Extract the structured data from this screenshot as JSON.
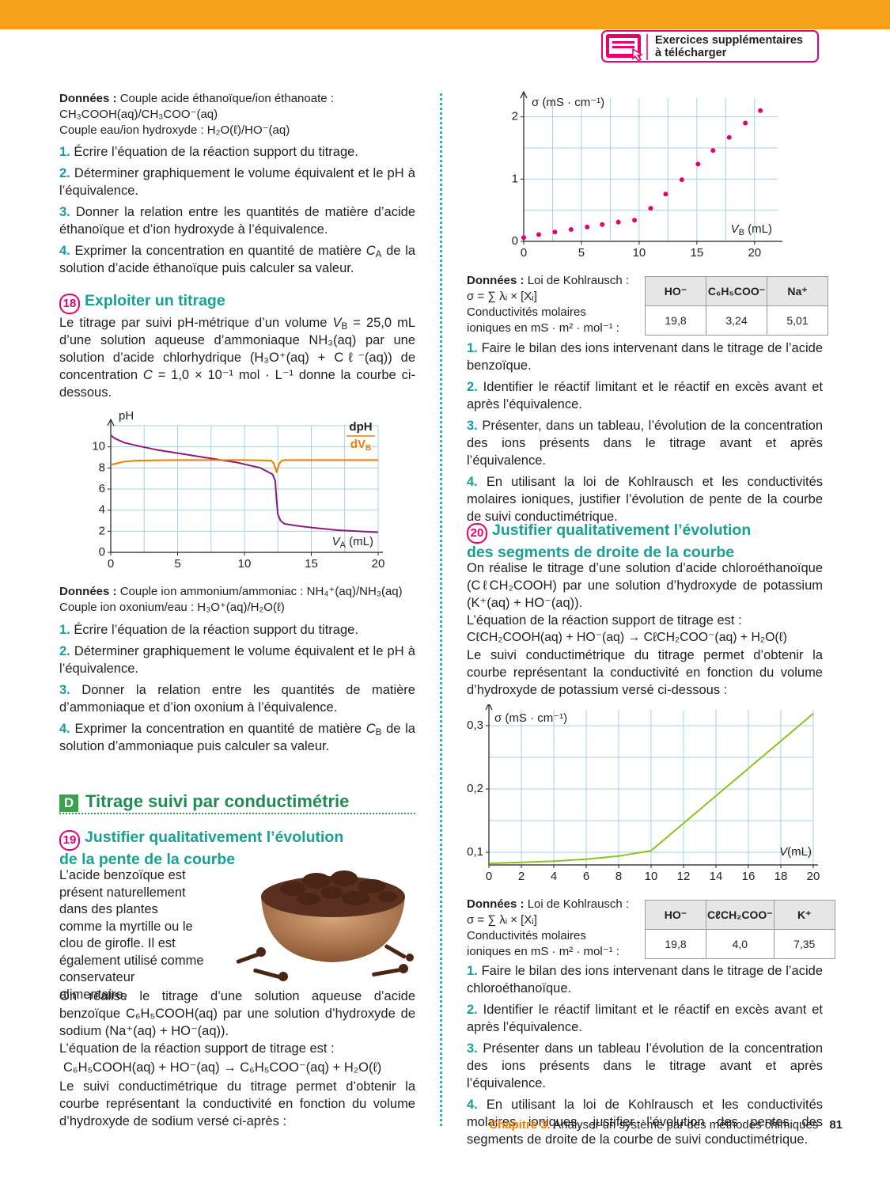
{
  "header": {
    "badge": [
      "Exercices supplémentaires",
      "à télécharger"
    ]
  },
  "left": {
    "donnees1": {
      "label": "Données :",
      "lines": [
        "Couple acide éthanoïque/ion éthanoate :",
        "CH₃COOH(aq)/CH₃COO⁻(aq)",
        "Couple eau/ion hydroxyde : H₂O(ℓ)/HO⁻(aq)"
      ]
    },
    "q1": [
      {
        "n": "1.",
        "t": "Écrire l’équation de la réaction support du titrage."
      },
      {
        "n": "2.",
        "t": "Déterminer graphiquement le volume équivalent et le pH à l’équivalence."
      },
      {
        "n": "3.",
        "t": "Donner la relation entre les quantités de matière d’acide éthanoïque et d’ion hydroxyde à l’équivalence."
      },
      {
        "n": "4.",
        "t": [
          "Exprimer la concentration en quantité de matière ",
          "C",
          "A",
          " de la solution d’acide éthanoïque puis calculer sa valeur."
        ]
      }
    ],
    "ex18": {
      "number": "18",
      "title": "Exploiter un titrage",
      "intro": [
        "Le titrage par suivi pH-métrique d’un volume ",
        "V",
        "B",
        " = 25,0 mL d’une solution aqueuse d’ammoniaque NH₃(aq) par une solution d’acide chlorhydrique (H₃O⁺(aq) + Cℓ⁻(aq)) de concentration ",
        "C",
        " = 1,0 × 10⁻¹ mol · L⁻¹ donne la courbe ci-dessous."
      ],
      "donnees": {
        "label": "Données :",
        "lines": [
          "Couple ion ammonium/ammoniac : NH₄⁺(aq)/NH₃(aq)",
          "Couple ion oxonium/eau : H₃O⁺(aq)/H₂O(ℓ)"
        ]
      },
      "q": [
        {
          "n": "1.",
          "t": "Écrire l’équation de la réaction support du titrage."
        },
        {
          "n": "2.",
          "t": "Déterminer graphiquement le volume équivalent et le pH à l’équivalence."
        },
        {
          "n": "3.",
          "t": "Donner la relation entre les quantités de matière d’ammoniaque et d’ion oxonium à l’équivalence."
        },
        {
          "n": "4.",
          "t": [
            "Exprimer la concentration en quantité de matière ",
            "C",
            "B",
            " de la solution d’ammoniaque puis calculer sa valeur."
          ]
        }
      ]
    },
    "section": {
      "letter": "D",
      "title": "Titrage suivi par conductimétrie"
    },
    "ex19": {
      "number": "19",
      "title": [
        "Justifier qualitativement l’évolution",
        "de la pente de la courbe"
      ],
      "intro": "L’acide benzoïque est présent naturellement dans des plantes comme la myrtille ou le clou de girofle. Il est également utilisé comme conservateur alimentaire.",
      "para": "On réalise le titrage d’une solution aqueuse d’acide benzoïque C₆H₅COOH(aq) par une solution d’hydroxyde de sodium (Na⁺(aq) + HO⁻(aq)).",
      "eq_intro": "L’équation de la réaction support de titrage est :",
      "equation": "C₆H₅COOH(aq) + HO⁻(aq) → C₆H₅COO⁻(aq) + H₂O(ℓ)",
      "para2": "Le suivi conductimétrique du titrage permet d’obtenir la courbe représentant la conductivité en fonction du volume d’hydroxyde de sodium versé ci-après :"
    }
  },
  "right": {
    "ex19": {
      "donnees": {
        "label": "Données :",
        "law": "Loi de Kohlrausch :",
        "formula": "σ = ∑ λᵢ × [Xᵢ]",
        "cond": [
          "Conductivités molaires",
          "ioniques en mS · m² · mol⁻¹ :"
        ],
        "table": {
          "header": [
            "HO⁻",
            "C₆H₅COO⁻",
            "Na⁺"
          ],
          "row": [
            "19,8",
            "3,24",
            "5,01"
          ]
        }
      },
      "q": [
        {
          "n": "1.",
          "t": "Faire le bilan des ions intervenant dans le titrage de l’acide benzoïque."
        },
        {
          "n": "2.",
          "t": "Identifier le réactif limitant et le réactif en excès avant et après l’équivalence."
        },
        {
          "n": "3.",
          "t": "Présenter, dans un tableau, l’évolution de la concentration des ions présents dans le titrage avant et après l’équivalence."
        },
        {
          "n": "4.",
          "t": "En utilisant la loi de Kohlrausch et les conductivités molaires ioniques, justifier l’évolution de pente de la courbe de suivi conductimétrique."
        }
      ]
    },
    "ex20": {
      "number": "20",
      "title": [
        "Justifier qualitativement l’évolution",
        "des segments de droite de la courbe"
      ],
      "intro": "On réalise le titrage d’une solution d’acide chloroéthanoïque (CℓCH₂COOH) par une solution d’hydroxyde de potassium (K⁺(aq) + HO⁻(aq)).",
      "eq_intro": "L’équation de la réaction support de titrage est :",
      "equation": "CℓCH₂COOH(aq) + HO⁻(aq) → CℓCH₂COO⁻(aq) + H₂O(ℓ)",
      "para2": "Le suivi conductimétrique du titrage permet d’obtenir la courbe représentant la conductivité en fonction du volume d’hydroxyde de potassium versé ci-dessous :",
      "donnees": {
        "label": "Données :",
        "law": "Loi de Kohlrausch :",
        "formula": "σ = ∑ λᵢ × [Xᵢ]",
        "cond": [
          "Conductivités molaires",
          "ioniques en mS · m² · mol⁻¹ :"
        ],
        "table": {
          "header": [
            "HO⁻",
            "CℓCH₂COO⁻",
            "K⁺"
          ],
          "row": [
            "19,8",
            "4,0",
            "7,35"
          ]
        }
      },
      "q": [
        {
          "n": "1.",
          "t": "Faire le bilan des ions intervenant dans le titrage de l’acide chloroéthanoïque."
        },
        {
          "n": "2.",
          "t": "Identifier le réactif limitant et le réactif en excès avant et après l’équivalence."
        },
        {
          "n": "3.",
          "t": "Présenter dans un tableau l’évolution de la concentration des ions présents dans le titrage avant et après l’équivalence."
        },
        {
          "n": "4.",
          "t": "En utilisant la loi de Kohlrausch et les conductivités molaires ioniques, justifier l’évolution des pentes des segments de droite de la courbe de suivi conductimétrique."
        }
      ]
    }
  },
  "footer": {
    "chapter": "Chapitre 3.",
    "title": "Analyser un système par des méthodes chimiques",
    "page": "81"
  },
  "chart_data": [
    {
      "type": "line",
      "ylabel": "pH",
      "xlabel": [
        "V",
        "A",
        " (mL)"
      ],
      "xlim": [
        0,
        20
      ],
      "ylim": [
        0,
        12
      ],
      "xticks": [
        0,
        5,
        10,
        15,
        20
      ],
      "yticks": [
        0,
        2,
        4,
        6,
        8,
        10
      ],
      "grid": {
        "x_step": 2.5,
        "y_step": 2
      },
      "series": [
        {
          "color": "#8a1a7e",
          "x": [
            0,
            0.3,
            1,
            2,
            3.5,
            5,
            7,
            9.5,
            11.2,
            12.1,
            12.3,
            12.4,
            12.5,
            12.7,
            13,
            14,
            15.4,
            17,
            20
          ],
          "values": [
            11.1,
            10.8,
            10.4,
            10.1,
            9.7,
            9.4,
            9.0,
            8.5,
            8.0,
            7.4,
            6.8,
            5.0,
            3.6,
            3.0,
            2.7,
            2.5,
            2.3,
            2.1,
            1.9
          ]
        },
        {
          "name": "dpH",
          "name_below": [
            "dV",
            "B"
          ],
          "color": "#ef7d00",
          "x": [
            0,
            1,
            2,
            5,
            10,
            12,
            12.2,
            12.4,
            12.6,
            12.8,
            13,
            15,
            20
          ],
          "values": [
            8.3,
            8.6,
            8.7,
            8.75,
            8.75,
            8.7,
            8.4,
            7.6,
            8.4,
            8.7,
            8.75,
            8.75,
            8.75
          ]
        }
      ]
    },
    {
      "type": "scatter",
      "ylabel": "σ (mS · cm⁻¹)",
      "xlabel": [
        "V",
        "B",
        " (mL)"
      ],
      "xlim": [
        0,
        22
      ],
      "ylim": [
        0,
        2.3
      ],
      "xticks": [
        0,
        5,
        10,
        15,
        20
      ],
      "yticks": [
        0,
        1,
        2
      ],
      "grid": {
        "x_step": 2.5,
        "y_step": 0.5
      },
      "series": [
        {
          "color": "#e5006d",
          "x": [
            0,
            1.3,
            2.7,
            4.1,
            5.5,
            6.8,
            8.2,
            9.6,
            11,
            12.3,
            13.7,
            15.1,
            16.4,
            17.8,
            19.2,
            20.5
          ],
          "values": [
            0.06,
            0.11,
            0.15,
            0.19,
            0.23,
            0.27,
            0.31,
            0.34,
            0.53,
            0.76,
            0.99,
            1.24,
            1.46,
            1.67,
            1.9,
            2.1
          ]
        }
      ]
    },
    {
      "type": "line",
      "ylabel": "σ (mS · cm⁻¹)",
      "xlabel": [
        "V",
        "(mL)"
      ],
      "xlim": [
        0,
        20
      ],
      "ylim": [
        0.08,
        0.325
      ],
      "xticks": [
        0,
        2,
        4,
        6,
        8,
        10,
        12,
        14,
        16,
        18,
        20
      ],
      "yticks": [
        {
          "value": 0.1,
          "label": "0,1"
        },
        {
          "value": 0.2,
          "label": "0,2"
        },
        {
          "value": 0.3,
          "label": "0,3"
        }
      ],
      "grid": {
        "x_step": 2,
        "y_step": 0.05
      },
      "series": [
        {
          "color": "#8dc21f",
          "x": [
            0,
            2,
            4,
            6,
            8,
            10,
            20
          ],
          "values": [
            0.0825,
            0.084,
            0.086,
            0.089,
            0.094,
            0.1025,
            0.319
          ]
        }
      ]
    }
  ]
}
